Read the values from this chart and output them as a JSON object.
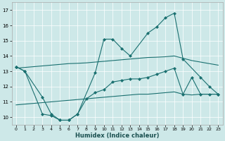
{
  "xlabel": "Humidex (Indice chaleur)",
  "background_color": "#cde8e8",
  "line_color": "#1a7070",
  "ylim": [
    9.5,
    17.5
  ],
  "yticks": [
    10,
    11,
    12,
    13,
    14,
    15,
    16,
    17
  ],
  "xlim": [
    -0.5,
    23.5
  ],
  "figsize": [
    3.2,
    2.0
  ],
  "dpi": 100,
  "line_a_x": [
    0,
    1,
    3,
    4,
    5,
    6,
    7,
    9,
    10,
    11,
    12,
    13,
    15,
    16,
    17,
    18,
    19,
    21,
    22,
    23
  ],
  "line_a_y": [
    13.3,
    13.0,
    10.2,
    10.1,
    9.8,
    9.8,
    10.2,
    12.9,
    15.1,
    15.1,
    14.5,
    14.0,
    15.5,
    15.9,
    16.5,
    16.8,
    13.8,
    12.6,
    12.0,
    11.5
  ],
  "line_b_x": [
    0,
    1,
    2,
    3,
    4,
    5,
    6,
    7,
    8,
    9,
    10,
    11,
    12,
    13,
    14,
    15,
    16,
    17,
    18,
    19,
    20,
    21,
    22,
    23
  ],
  "line_b_y": [
    13.2,
    13.25,
    13.3,
    13.35,
    13.4,
    13.45,
    13.5,
    13.52,
    13.55,
    13.6,
    13.65,
    13.7,
    13.75,
    13.8,
    13.85,
    13.9,
    13.92,
    13.95,
    14.0,
    13.85,
    13.7,
    13.6,
    13.5,
    13.4
  ],
  "line_c_x": [
    0,
    1,
    2,
    3,
    4,
    5,
    6,
    7,
    8,
    9,
    10,
    11,
    12,
    13,
    14,
    15,
    16,
    17,
    18,
    19,
    20,
    21,
    22,
    23
  ],
  "line_c_y": [
    10.8,
    10.85,
    10.9,
    10.95,
    11.0,
    11.05,
    11.1,
    11.15,
    11.2,
    11.25,
    11.3,
    11.35,
    11.4,
    11.45,
    11.5,
    11.5,
    11.55,
    11.6,
    11.65,
    11.5,
    11.45,
    11.5,
    11.5,
    11.5
  ],
  "line_d_x": [
    0,
    1,
    3,
    4,
    5,
    6,
    7,
    8,
    9,
    10,
    11,
    12,
    13,
    14,
    15,
    16,
    17,
    18,
    19,
    20,
    21,
    22,
    23
  ],
  "line_d_y": [
    13.3,
    13.0,
    11.3,
    10.2,
    9.8,
    9.8,
    10.2,
    11.2,
    11.6,
    11.8,
    12.3,
    12.4,
    12.5,
    12.5,
    12.6,
    12.8,
    13.0,
    13.2,
    11.5,
    12.6,
    11.5,
    11.5,
    11.5
  ]
}
